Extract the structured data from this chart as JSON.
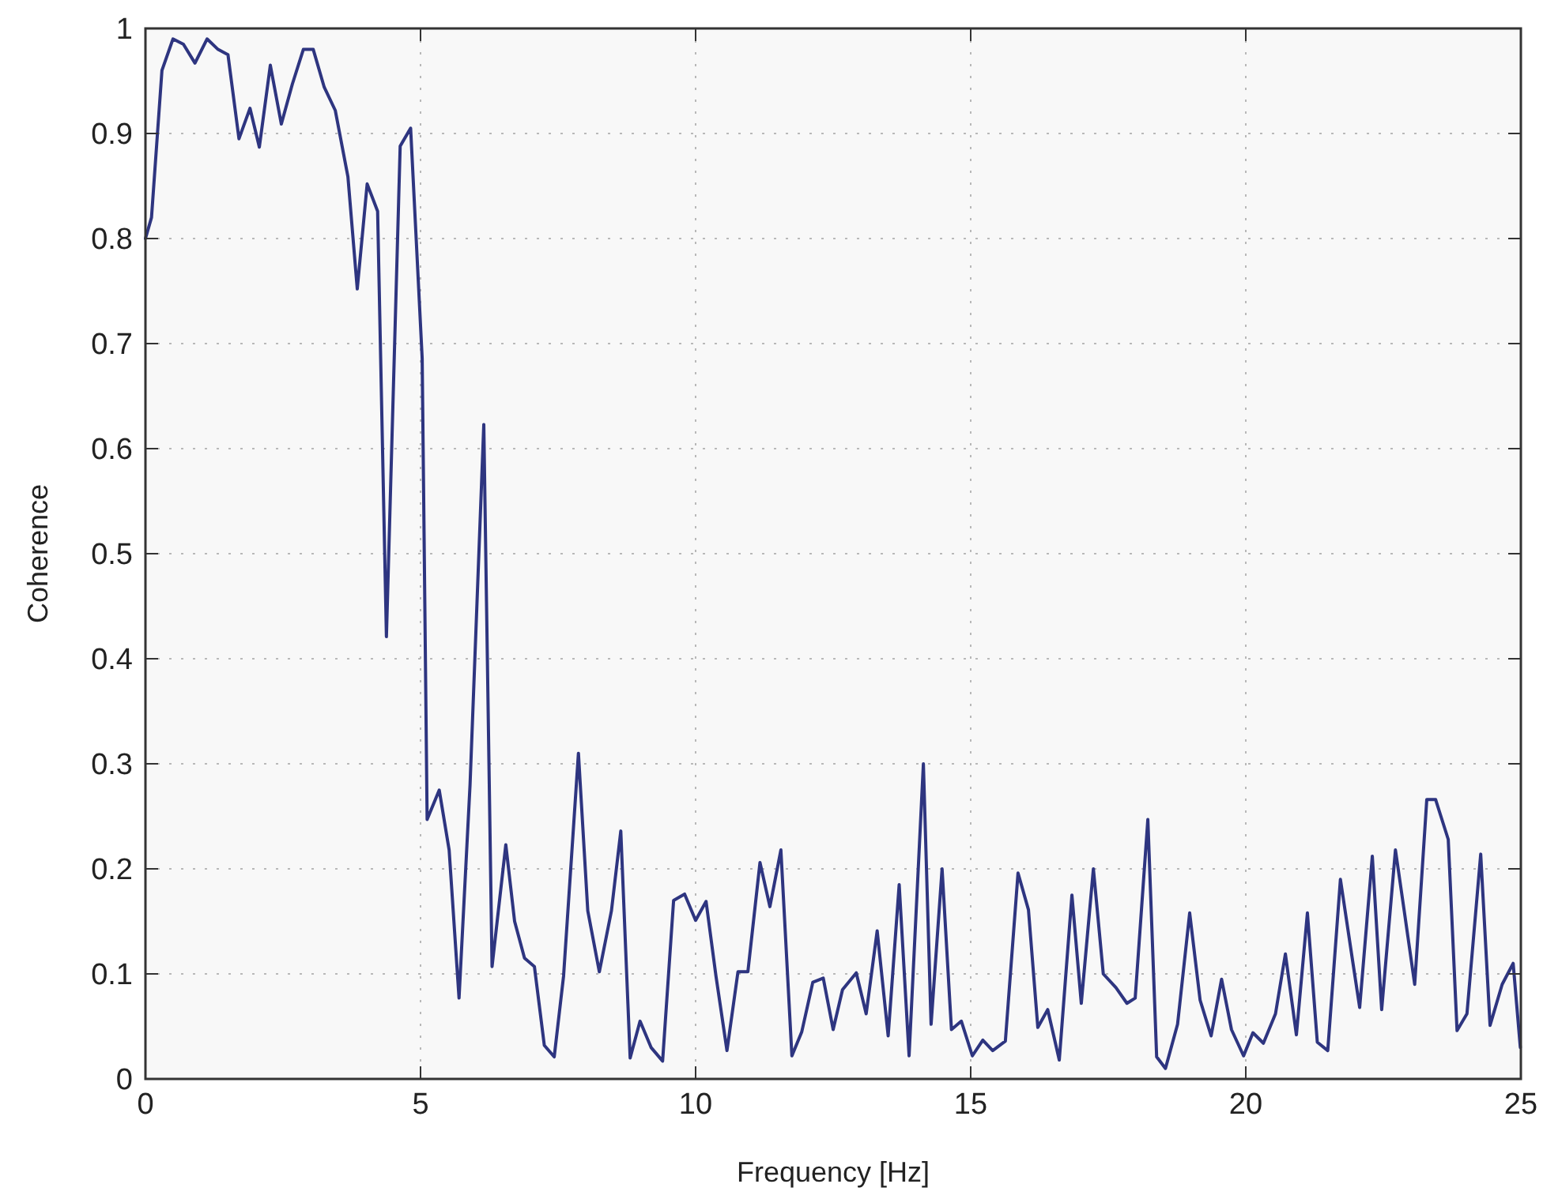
{
  "chart_data": {
    "type": "line",
    "xlabel": "Frequency [Hz]",
    "ylabel": "Coherence",
    "xlim": [
      0,
      25
    ],
    "xticks": [
      0,
      5,
      10,
      15,
      20,
      25
    ],
    "ylim": [
      0,
      1
    ],
    "yticks": [
      0,
      0.1,
      0.2,
      0.3,
      0.4,
      0.5,
      0.6,
      0.7,
      0.8,
      0.9,
      1
    ],
    "grid": true,
    "series": [
      {
        "color": "#2e3580",
        "x": [
          0,
          0.11,
          0.3,
          0.5,
          0.69,
          0.9,
          1.12,
          1.32,
          1.5,
          1.7,
          1.9,
          2.07,
          2.27,
          2.47,
          2.67,
          2.87,
          3.05,
          3.25,
          3.45,
          3.68,
          3.85,
          4.03,
          4.22,
          4.38,
          4.63,
          4.82,
          5.03,
          5.12,
          5.34,
          5.52,
          5.7,
          5.9,
          6.15,
          6.3,
          6.55,
          6.71,
          6.89,
          7.07,
          7.25,
          7.43,
          7.6,
          7.87,
          8.04,
          8.25,
          8.47,
          8.64,
          8.81,
          8.99,
          9.19,
          9.4,
          9.6,
          9.8,
          10.0,
          10.19,
          10.37,
          10.57,
          10.77,
          10.95,
          11.17,
          11.35,
          11.55,
          11.75,
          11.93,
          12.13,
          12.32,
          12.5,
          12.67,
          12.92,
          13.1,
          13.3,
          13.5,
          13.7,
          13.88,
          14.14,
          14.28,
          14.48,
          14.65,
          14.83,
          15.03,
          15.22,
          15.4,
          15.63,
          15.86,
          16.05,
          16.22,
          16.4,
          16.61,
          16.84,
          17.01,
          17.23,
          17.41,
          17.64,
          17.84,
          17.99,
          18.22,
          18.38,
          18.54,
          18.76,
          18.98,
          19.17,
          19.37,
          19.56,
          19.74,
          19.96,
          20.13,
          20.32,
          20.54,
          20.72,
          20.92,
          21.12,
          21.3,
          21.49,
          21.72,
          21.92,
          22.07,
          22.3,
          22.47,
          22.72,
          22.88,
          23.07,
          23.29,
          23.45,
          23.68,
          23.84,
          24.02,
          24.27,
          24.44,
          24.66,
          24.86,
          24.99
        ],
        "values": [
          0.8,
          0.82,
          0.96,
          0.99,
          0.985,
          0.967,
          0.99,
          0.98,
          0.975,
          0.895,
          0.924,
          0.887,
          0.965,
          0.909,
          0.947,
          0.98,
          0.98,
          0.944,
          0.922,
          0.859,
          0.752,
          0.852,
          0.826,
          0.421,
          0.888,
          0.905,
          0.686,
          0.247,
          0.275,
          0.218,
          0.077,
          0.28,
          0.623,
          0.107,
          0.223,
          0.15,
          0.115,
          0.107,
          0.032,
          0.021,
          0.098,
          0.31,
          0.16,
          0.102,
          0.16,
          0.236,
          0.02,
          0.055,
          0.03,
          0.017,
          0.17,
          0.176,
          0.151,
          0.169,
          0.098,
          0.027,
          0.102,
          0.102,
          0.206,
          0.164,
          0.218,
          0.022,
          0.045,
          0.092,
          0.096,
          0.047,
          0.085,
          0.101,
          0.062,
          0.141,
          0.041,
          0.185,
          0.022,
          0.3,
          0.052,
          0.2,
          0.047,
          0.055,
          0.022,
          0.037,
          0.027,
          0.036,
          0.196,
          0.161,
          0.049,
          0.066,
          0.018,
          0.175,
          0.072,
          0.2,
          0.1,
          0.087,
          0.072,
          0.077,
          0.247,
          0.021,
          0.01,
          0.052,
          0.158,
          0.075,
          0.041,
          0.095,
          0.047,
          0.022,
          0.044,
          0.034,
          0.062,
          0.119,
          0.042,
          0.158,
          0.035,
          0.027,
          0.19,
          0.12,
          0.068,
          0.212,
          0.066,
          0.218,
          0.16,
          0.09,
          0.266,
          0.266,
          0.228,
          0.046,
          0.062,
          0.214,
          0.051,
          0.09,
          0.11,
          0.03
        ]
      }
    ]
  }
}
